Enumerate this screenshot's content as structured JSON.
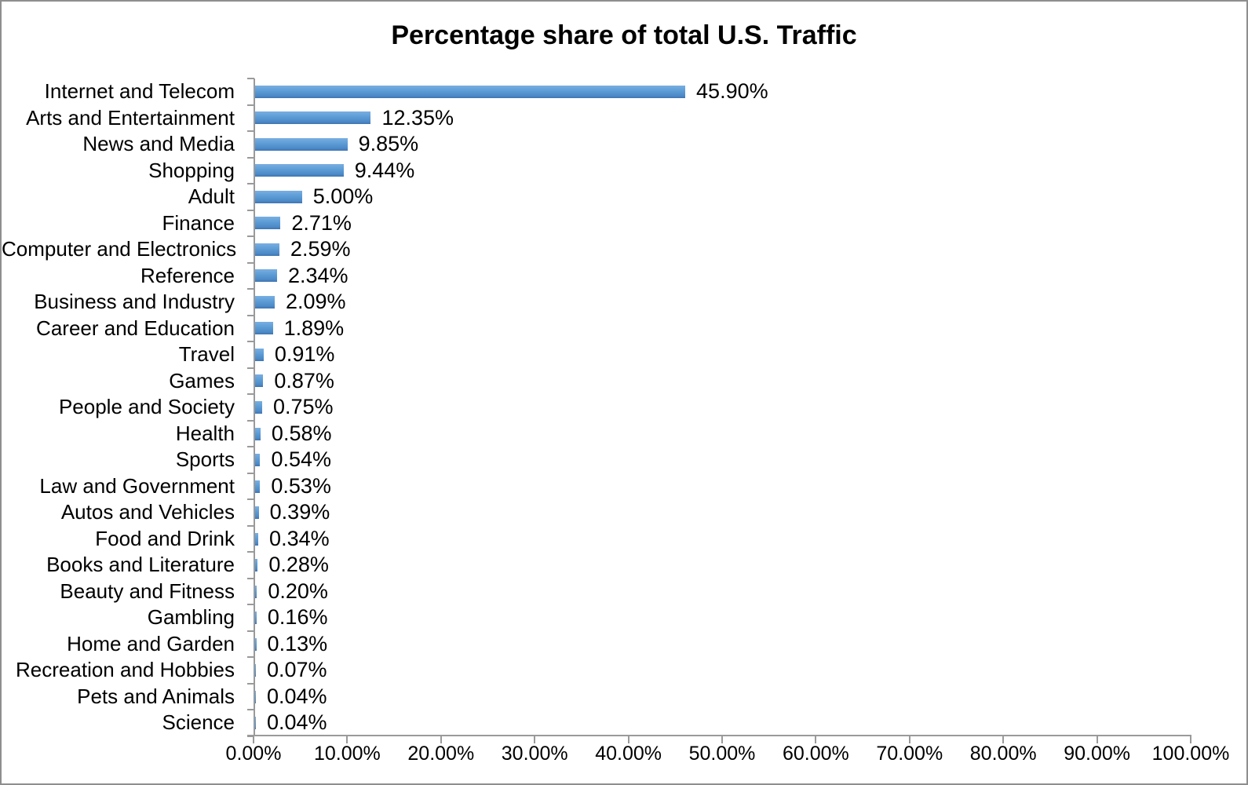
{
  "chart": {
    "title": "Percentage share of total U.S. Traffic",
    "colors": {
      "bar_top": "#79aee1",
      "bar_mid": "#5b9bd5",
      "bar_bottom": "#3f74b2",
      "axis": "#9a9a9a",
      "frame_border": "#8e8e8e",
      "text": "#000000",
      "background": "#ffffff"
    }
  },
  "chart_data": {
    "type": "bar",
    "orientation": "horizontal",
    "title": "Percentage share of total U.S. Traffic",
    "categories": [
      "Internet and Telecom",
      "Arts and Entertainment",
      "News and Media",
      "Shopping",
      "Adult",
      "Finance",
      "Computer and Electronics",
      "Reference",
      "Business and Industry",
      "Career and Education",
      "Travel",
      "Games",
      "People and Society",
      "Health",
      "Sports",
      "Law and Government",
      "Autos and Vehicles",
      "Food and Drink",
      "Books and Literature",
      "Beauty and Fitness",
      "Gambling",
      "Home and Garden",
      "Recreation and Hobbies",
      "Pets and Animals",
      "Science"
    ],
    "values": [
      45.9,
      12.35,
      9.85,
      9.44,
      5.0,
      2.71,
      2.59,
      2.34,
      2.09,
      1.89,
      0.91,
      0.87,
      0.75,
      0.58,
      0.54,
      0.53,
      0.39,
      0.34,
      0.28,
      0.2,
      0.16,
      0.13,
      0.07,
      0.04,
      0.04
    ],
    "value_labels": [
      "45.90%",
      "12.35%",
      "9.85%",
      "9.44%",
      "5.00%",
      "2.71%",
      "2.59%",
      "2.34%",
      "2.09%",
      "1.89%",
      "0.91%",
      "0.87%",
      "0.75%",
      "0.58%",
      "0.54%",
      "0.53%",
      "0.39%",
      "0.34%",
      "0.28%",
      "0.20%",
      "0.16%",
      "0.13%",
      "0.07%",
      "0.04%",
      "0.04%"
    ],
    "xlabel": "",
    "ylabel": "",
    "xlim": [
      0,
      100
    ],
    "x_ticks": [
      "0.00%",
      "10.00%",
      "20.00%",
      "30.00%",
      "40.00%",
      "50.00%",
      "60.00%",
      "70.00%",
      "80.00%",
      "90.00%",
      "100.00%"
    ],
    "x_tick_values": [
      0,
      10,
      20,
      30,
      40,
      50,
      60,
      70,
      80,
      90,
      100
    ],
    "grid": false,
    "legend": false
  }
}
